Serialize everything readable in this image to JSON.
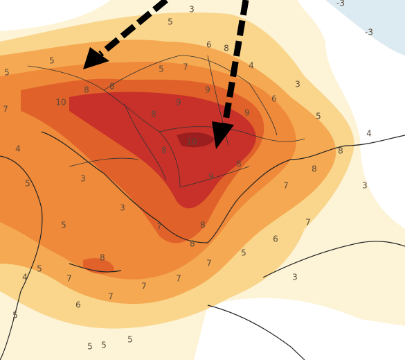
{
  "map": {
    "contour_labels": [
      "5",
      "5",
      "7",
      "10",
      "8",
      "8",
      "5",
      "7",
      "6",
      "8",
      "4",
      "3",
      "6",
      "5",
      "4",
      "8",
      "8",
      "7",
      "3",
      "7",
      "6",
      "3",
      "5",
      "4",
      "5",
      "3",
      "3",
      "5",
      "7",
      "8",
      "8",
      "4",
      "5",
      "5",
      "6",
      "7",
      "7",
      "7",
      "7",
      "5",
      "5",
      "5",
      "8",
      "9",
      "9",
      "9",
      "10",
      "8",
      "9",
      "8",
      "5",
      "3",
      "-3",
      "-3",
      "7",
      "8"
    ]
  }
}
